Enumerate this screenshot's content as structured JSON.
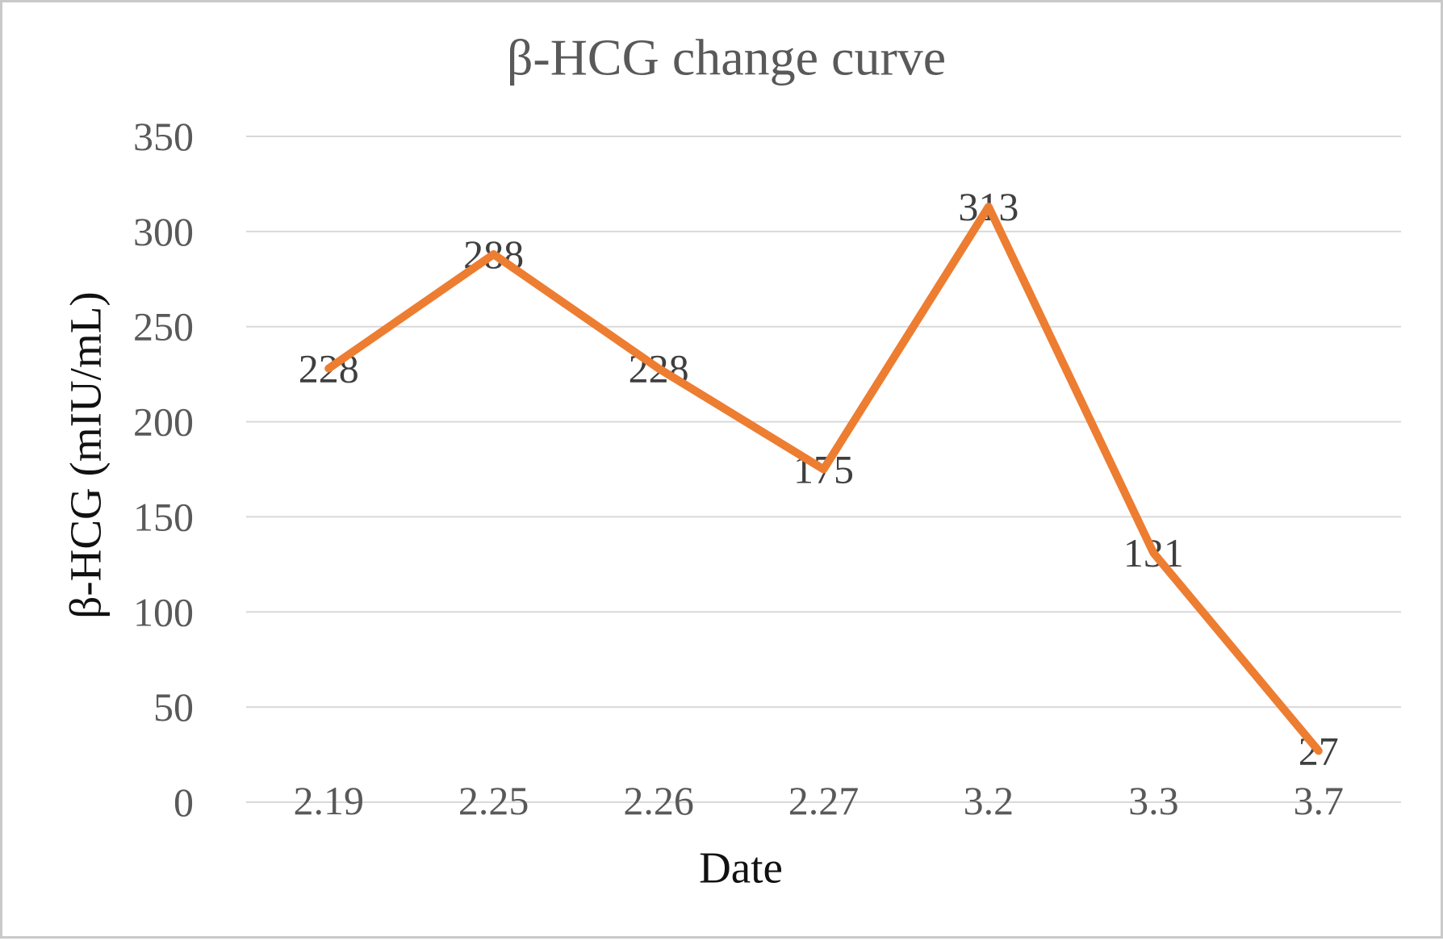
{
  "chart_data": {
    "type": "line",
    "title": "β-HCG change curve",
    "xlabel": "Date",
    "ylabel": "β-HCG (mIU/mL)",
    "categories": [
      "2.19",
      "2.25",
      "2.26",
      "2.27",
      "3.2",
      "3.3",
      "3.7"
    ],
    "values": [
      228,
      288,
      228,
      175,
      313,
      131,
      27
    ],
    "data_labels": [
      "228",
      "288",
      "228",
      "175",
      "313",
      "131",
      "27"
    ],
    "yticks": [
      0,
      50,
      100,
      150,
      200,
      250,
      300,
      350
    ],
    "ylim": [
      0,
      350
    ],
    "grid": true,
    "legend_position": "none",
    "line_color": "#ED7D31"
  }
}
